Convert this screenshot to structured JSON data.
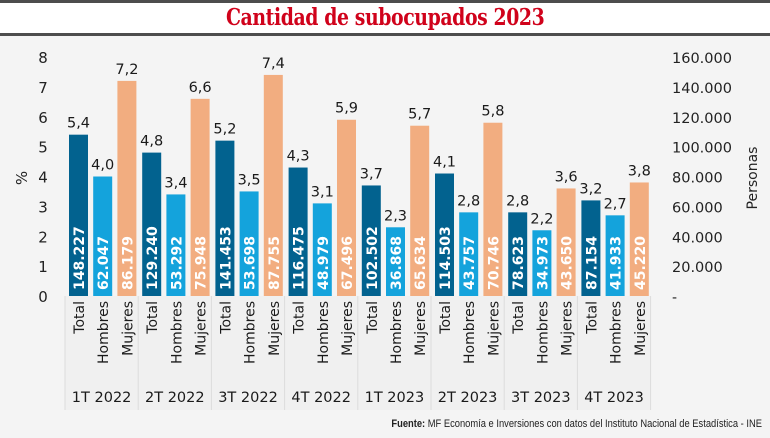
{
  "header": {
    "title": "Cantidad de subocupados 2023"
  },
  "source": {
    "label": "Fuente:",
    "text": "MF Economía e Inversiones con datos del Instituto Nacional de Estadística - INE"
  },
  "colors": {
    "total": "#02628f",
    "hombres": "#14a3dc",
    "mujeres": "#f2ad80",
    "title": "#d0021b"
  },
  "chart_data": {
    "type": "bar",
    "title": "Cantidad de subocupados 2023",
    "ylabel": "%",
    "y2label": "Personas",
    "ylim": [
      0,
      8
    ],
    "y2lim": [
      0,
      160000
    ],
    "yticks": [
      "0",
      "1",
      "2",
      "3",
      "4",
      "5",
      "6",
      "7",
      "8"
    ],
    "y2ticks": [
      "-",
      "20.000",
      "40.000",
      "60.000",
      "80.000",
      "100.000",
      "120.000",
      "140.000",
      "160.000"
    ],
    "grid": false,
    "categories": [
      "1T 2022",
      "2T 2022",
      "3T 2022",
      "4T 2022",
      "1T 2023",
      "2T 2023",
      "3T 2023",
      "4T 2023"
    ],
    "subcategories": [
      "Total",
      "Hombres",
      "Mujeres"
    ],
    "series": [
      {
        "name": "Total",
        "percent": [
          5.4,
          4.8,
          5.2,
          4.3,
          3.7,
          4.1,
          2.8,
          3.2
        ],
        "percent_labels": [
          "5,4",
          "4,8",
          "5,2",
          "4,3",
          "3,7",
          "4,1",
          "2,8",
          "3,2"
        ],
        "persons_labels": [
          "148.227",
          "129.240",
          "141.453",
          "116.475",
          "102.502",
          "114.503",
          "78.623",
          "87.154"
        ]
      },
      {
        "name": "Hombres",
        "percent": [
          4.0,
          3.4,
          3.5,
          3.1,
          2.3,
          2.8,
          2.2,
          2.7
        ],
        "percent_labels": [
          "4,0",
          "3,4",
          "3,5",
          "3,1",
          "2,3",
          "2,8",
          "2,2",
          "2,7"
        ],
        "persons_labels": [
          "62.047",
          "53.292",
          "53.698",
          "48.979",
          "36.868",
          "43.757",
          "34.973",
          "41.933"
        ]
      },
      {
        "name": "Mujeres",
        "percent": [
          7.2,
          6.6,
          7.4,
          5.9,
          5.7,
          5.8,
          3.6,
          3.8
        ],
        "percent_labels": [
          "7,2",
          "6,6",
          "7,4",
          "5,9",
          "5,7",
          "5,8",
          "3,6",
          "3,8"
        ],
        "persons_labels": [
          "86.179",
          "75.948",
          "87.755",
          "67.496",
          "65.634",
          "70.746",
          "43.650",
          "45.220"
        ]
      }
    ]
  }
}
